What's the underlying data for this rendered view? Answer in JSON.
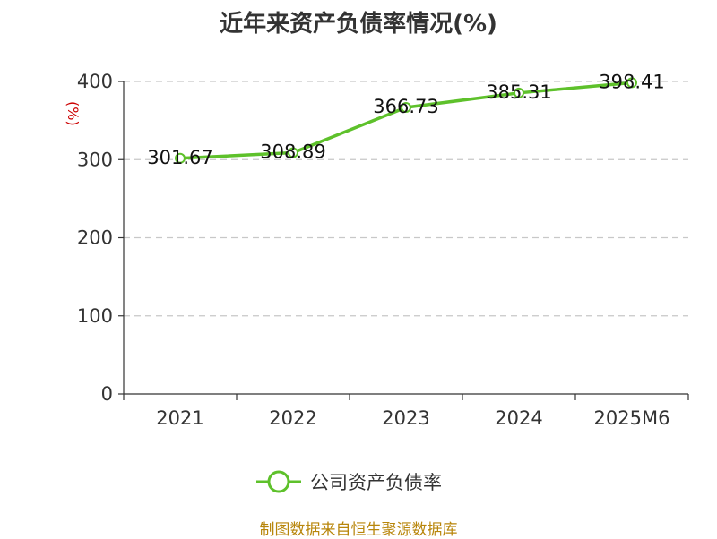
{
  "chart_data": {
    "type": "line",
    "title": "近年来资产负债率情况(%)",
    "ylabel": "(%)",
    "xlabel": "",
    "categories": [
      "2021",
      "2022",
      "2023",
      "2024",
      "2025M6"
    ],
    "series": [
      {
        "name": "公司资产负债率",
        "values": [
          301.67,
          308.89,
          366.73,
          385.31,
          398.41
        ],
        "labels": [
          "301.67",
          "308.89",
          "366.73",
          "385.31",
          "398.41"
        ],
        "color": "#5ec12b"
      }
    ],
    "ylim": [
      0,
      400
    ],
    "yticks": [
      "0",
      "100",
      "200",
      "300",
      "400"
    ],
    "grid": true,
    "legend_position": "bottom"
  },
  "source": "制图数据来自恒生聚源数据库"
}
